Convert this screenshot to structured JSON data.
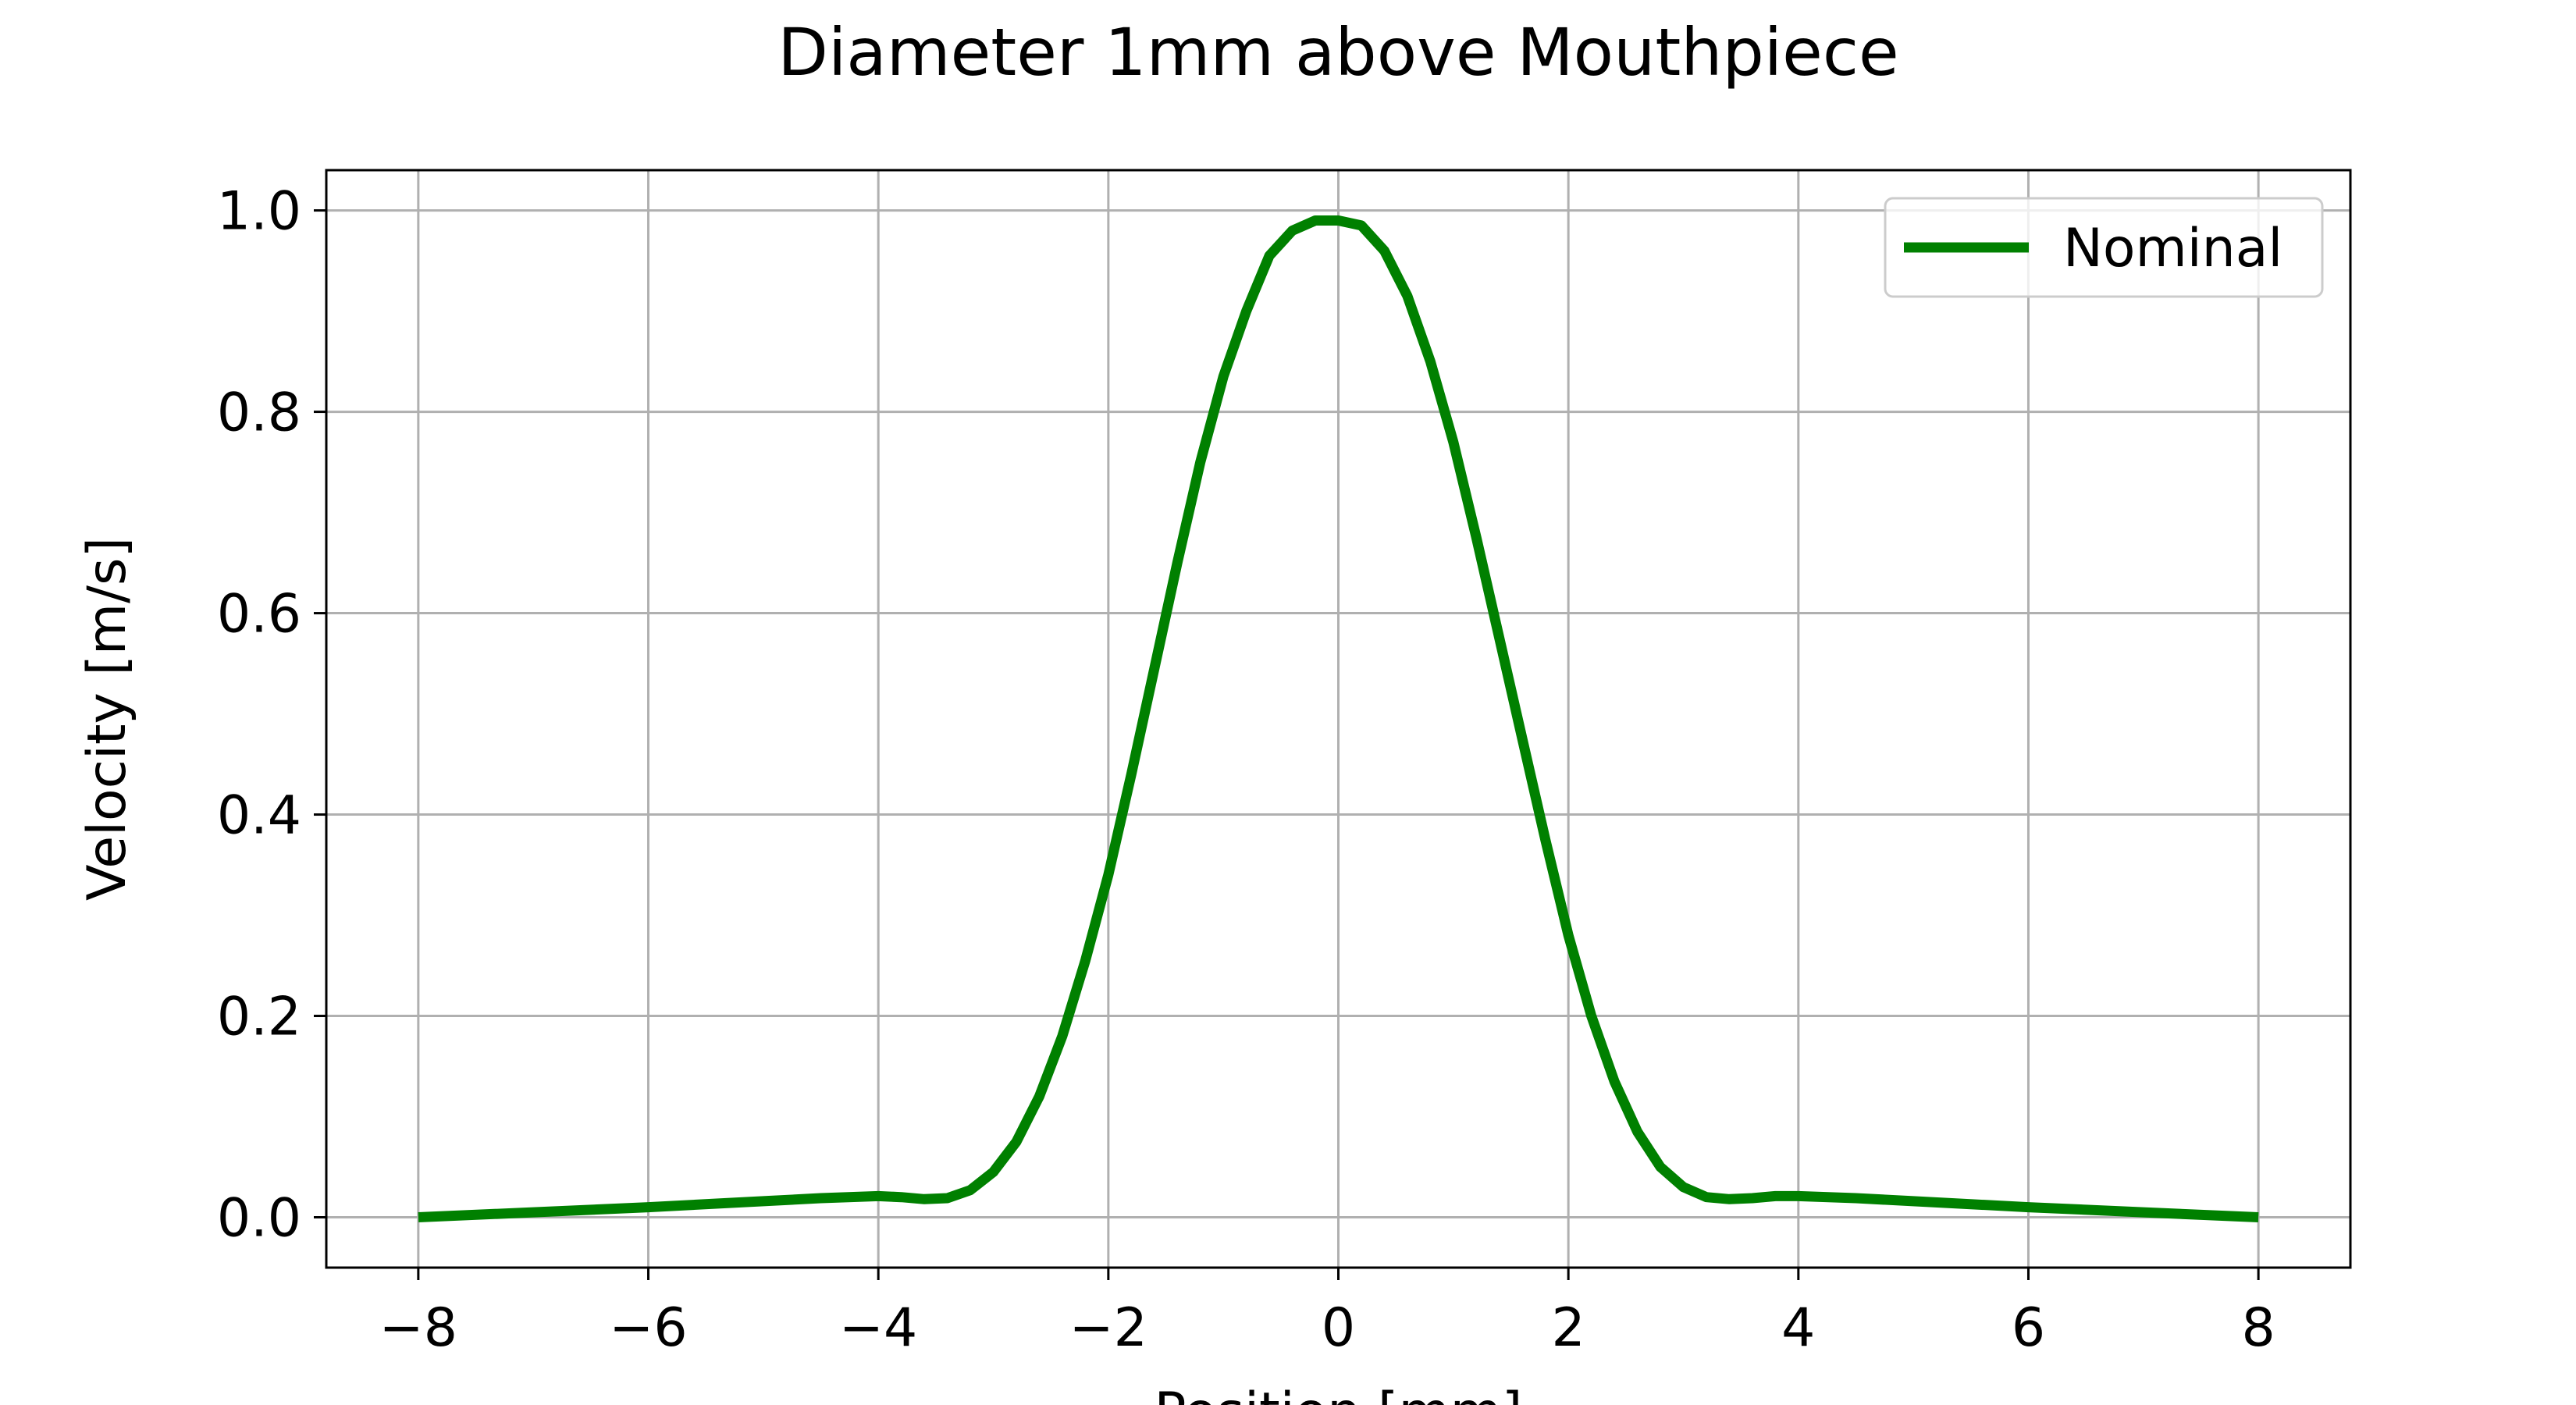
{
  "chart_data": {
    "type": "line",
    "title": "Diameter 1mm above Mouthpiece",
    "xlabel": "Position [mm]",
    "ylabel": "Velocity [m/s]",
    "xlim": [
      -8.8,
      8.8
    ],
    "ylim": [
      -0.05,
      1.04
    ],
    "x_ticks": [
      -8,
      -6,
      -4,
      -2,
      0,
      2,
      4,
      6,
      8
    ],
    "x_tick_labels": [
      "−8",
      "−6",
      "−4",
      "−2",
      "0",
      "2",
      "4",
      "6",
      "8"
    ],
    "y_ticks": [
      0.0,
      0.2,
      0.4,
      0.6,
      0.8,
      1.0
    ],
    "y_tick_labels": [
      "0.0",
      "0.2",
      "0.4",
      "0.6",
      "0.8",
      "1.0"
    ],
    "grid": true,
    "legend_position": "top-right",
    "series": [
      {
        "name": "Nominal",
        "color": "#008000",
        "x": [
          -8.0,
          -7.0,
          -6.0,
          -5.0,
          -4.5,
          -4.0,
          -3.8,
          -3.6,
          -3.4,
          -3.2,
          -3.0,
          -2.8,
          -2.6,
          -2.4,
          -2.2,
          -2.0,
          -1.8,
          -1.6,
          -1.4,
          -1.2,
          -1.0,
          -0.8,
          -0.6,
          -0.4,
          -0.2,
          0.0,
          0.2,
          0.4,
          0.6,
          0.8,
          1.0,
          1.2,
          1.4,
          1.6,
          1.8,
          2.0,
          2.2,
          2.4,
          2.6,
          2.8,
          3.0,
          3.2,
          3.4,
          3.6,
          3.8,
          4.0,
          4.5,
          5.0,
          6.0,
          7.0,
          8.0
        ],
        "values": [
          0.0,
          0.005,
          0.01,
          0.016,
          0.019,
          0.021,
          0.02,
          0.018,
          0.019,
          0.027,
          0.045,
          0.075,
          0.12,
          0.18,
          0.255,
          0.34,
          0.44,
          0.545,
          0.65,
          0.75,
          0.835,
          0.9,
          0.955,
          0.98,
          0.99,
          0.99,
          0.985,
          0.96,
          0.915,
          0.85,
          0.77,
          0.675,
          0.575,
          0.475,
          0.375,
          0.28,
          0.2,
          0.135,
          0.085,
          0.05,
          0.03,
          0.02,
          0.018,
          0.019,
          0.021,
          0.021,
          0.019,
          0.016,
          0.01,
          0.005,
          0.0
        ]
      }
    ]
  }
}
